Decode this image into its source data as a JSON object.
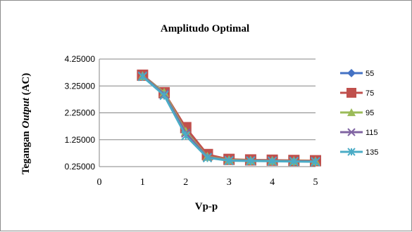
{
  "chart_data": {
    "type": "line",
    "title": "Amplitudo Optimal",
    "xlabel": "Vp-p",
    "ylabel_prefix": "Tegangan ",
    "ylabel_italic": "Output",
    "ylabel_suffix": " (AC)",
    "xlim": [
      0,
      5
    ],
    "ylim": [
      0.25,
      4.25
    ],
    "x_ticks": [
      "0",
      "1",
      "2",
      "3",
      "4",
      "5"
    ],
    "y_ticks": [
      "0.25000",
      "1.25000",
      "2.25000",
      "3.25000",
      "4.25000"
    ],
    "grid": "horizontal",
    "legend_position": "right",
    "x": [
      1,
      1.5,
      2,
      2.5,
      3,
      3.5,
      4,
      4.5,
      5
    ],
    "series": [
      {
        "name": "55",
        "color": "#4472c4",
        "marker": "diamond",
        "values": [
          3.65,
          3.0,
          1.65,
          0.65,
          0.5,
          0.48,
          0.47,
          0.46,
          0.45
        ]
      },
      {
        "name": "75",
        "color": "#c0504d",
        "marker": "square",
        "values": [
          3.65,
          3.0,
          1.7,
          0.7,
          0.52,
          0.5,
          0.49,
          0.48,
          0.47
        ]
      },
      {
        "name": "95",
        "color": "#9bbb59",
        "marker": "triangle",
        "values": [
          3.62,
          3.0,
          1.55,
          0.62,
          0.5,
          0.48,
          0.47,
          0.46,
          0.45
        ]
      },
      {
        "name": "115",
        "color": "#8064a2",
        "marker": "x",
        "values": [
          3.62,
          2.95,
          1.5,
          0.6,
          0.48,
          0.47,
          0.46,
          0.45,
          0.44
        ]
      },
      {
        "name": "135",
        "color": "#4bacc6",
        "marker": "star",
        "values": [
          3.6,
          2.9,
          1.4,
          0.58,
          0.47,
          0.46,
          0.45,
          0.44,
          0.43
        ]
      }
    ]
  }
}
